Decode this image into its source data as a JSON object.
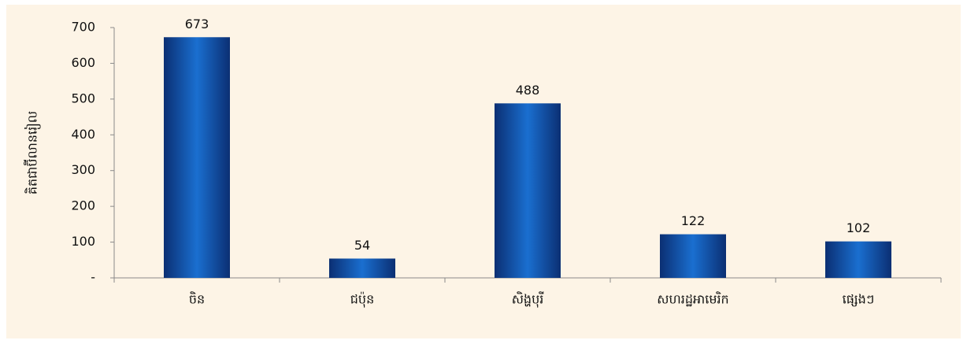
{
  "chart_data": {
    "type": "bar",
    "y_label": "គិតជាប៊ីលានរៀល",
    "categories": [
      "ចិន",
      "ជប៉ុន",
      "សិង្ហបុរី",
      "សហរដ្ឋអាមេរិក",
      "ផ្សេងៗ"
    ],
    "values": [
      673,
      54,
      488,
      122,
      102
    ],
    "color": "#1a6fd0",
    "ylim": [
      0,
      700
    ],
    "yticks": [
      {
        "value": 0,
        "label": "-"
      },
      100,
      200,
      300,
      400,
      500,
      600,
      700
    ],
    "grid": false
  }
}
